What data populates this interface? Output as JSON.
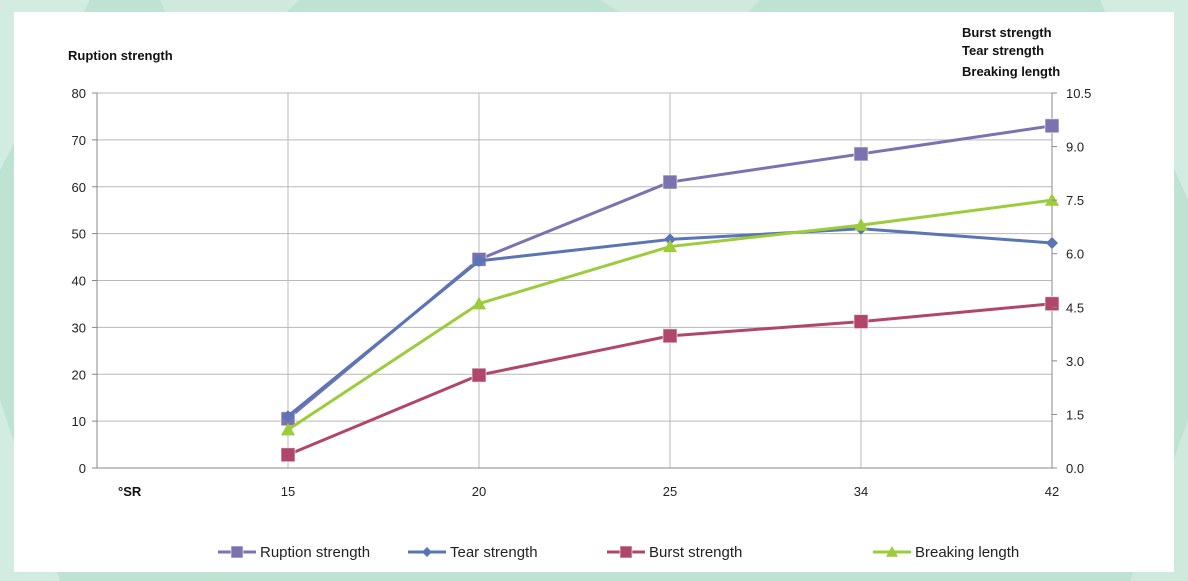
{
  "chart_data": {
    "type": "line",
    "categories": [
      "15",
      "20",
      "25",
      "34",
      "42"
    ],
    "x_axis_unit": "°SR",
    "left_axis": {
      "title": "Ruption strength",
      "ylim": [
        0,
        80
      ],
      "ticks": [
        "0",
        "10",
        "20",
        "30",
        "40",
        "50",
        "60",
        "70",
        "80"
      ]
    },
    "right_axis": {
      "title_lines": [
        "Burst strength",
        "Tear strength",
        "Breaking length"
      ],
      "ylim": [
        0,
        10.5
      ],
      "ticks": [
        "0.0",
        "1.5",
        "3.0",
        "4.5",
        "6.0",
        "7.5",
        "9.0",
        "10.5"
      ]
    },
    "grid": true,
    "legend_position": "bottom",
    "series": [
      {
        "name": "Ruption strength",
        "axis": "left",
        "values": [
          10.5,
          44.5,
          61,
          67,
          73
        ],
        "color": "#7b72b0",
        "marker": "square"
      },
      {
        "name": "Tear strength",
        "axis": "right",
        "values": [
          1.45,
          5.8,
          6.4,
          6.7,
          6.3
        ],
        "color": "#5a75b5",
        "marker": "diamond"
      },
      {
        "name": "Burst strength",
        "axis": "right",
        "values": [
          0.37,
          2.6,
          3.7,
          4.1,
          4.6
        ],
        "color": "#b0476a",
        "marker": "square"
      },
      {
        "name": "Breaking length",
        "axis": "right",
        "values": [
          1.07,
          4.6,
          6.2,
          6.8,
          7.5
        ],
        "color": "#9ccb3b",
        "marker": "triangle"
      }
    ]
  }
}
